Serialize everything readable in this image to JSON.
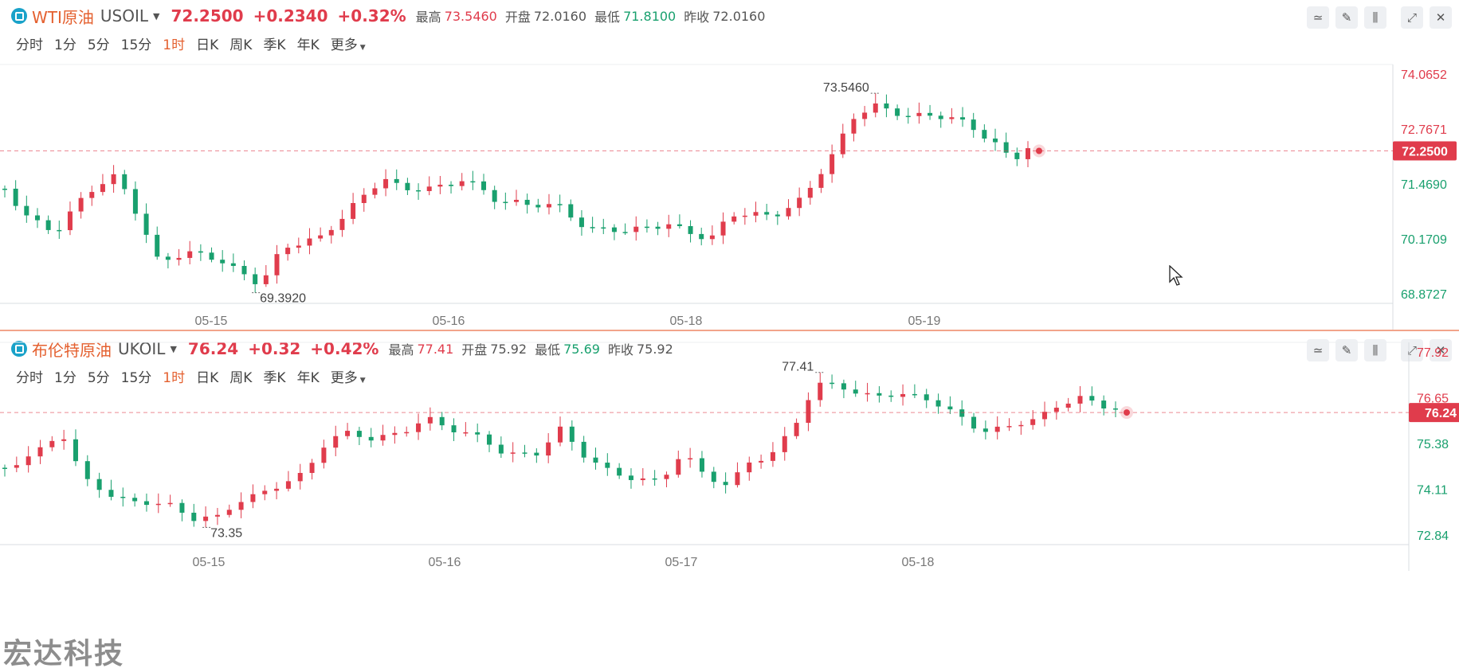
{
  "colors": {
    "up": "#e03c4c",
    "down": "#19a06e",
    "accent": "#e4602f",
    "axis": "#888"
  },
  "periods": [
    "分时",
    "1分",
    "5分",
    "15分",
    "1时",
    "日K",
    "周K",
    "季K",
    "年K",
    "更多"
  ],
  "active_period": "1时",
  "toolbar_icons": [
    "indicator-icon",
    "pencil-icon",
    "candle-settings-icon",
    "expand-icon",
    "close-icon"
  ],
  "watermark": "宏达科技",
  "panels": [
    {
      "name": "WTI原油",
      "code": "USOIL",
      "price": "72.2500",
      "change": "+0.2340",
      "change_pct": "+0.32%",
      "stats": [
        {
          "label": "最高",
          "value": "73.5460",
          "tone": "red"
        },
        {
          "label": "开盘",
          "value": "72.0160",
          "tone": "gray"
        },
        {
          "label": "最低",
          "value": "71.8100",
          "tone": "green"
        },
        {
          "label": "昨收",
          "value": "72.0160",
          "tone": "gray"
        }
      ],
      "chart": {
        "y_ticks": [
          "74.0652",
          "72.7671",
          "71.4690",
          "70.1709",
          "68.8727"
        ],
        "y_min": 68.8727,
        "y_max": 74.0652,
        "x_ticks": [
          "05-15",
          "05-16",
          "05-18",
          "05-19"
        ],
        "current": 72.25,
        "current_label": "72.2500",
        "high_label": "73.5460",
        "low_label": "69.3920"
      }
    },
    {
      "name": "布伦特原油",
      "code": "UKOIL",
      "price": "76.24",
      "change": "+0.32",
      "change_pct": "+0.42%",
      "stats": [
        {
          "label": "最高",
          "value": "77.41",
          "tone": "red"
        },
        {
          "label": "开盘",
          "value": "75.92",
          "tone": "gray"
        },
        {
          "label": "最低",
          "value": "75.69",
          "tone": "green"
        },
        {
          "label": "昨收",
          "value": "75.92",
          "tone": "gray"
        }
      ],
      "chart": {
        "y_ticks": [
          "77.92",
          "76.65",
          "75.38",
          "74.11",
          "72.84"
        ],
        "y_min": 72.84,
        "y_max": 77.92,
        "x_ticks": [
          "05-15",
          "05-16",
          "05-17",
          "05-18"
        ],
        "current": 76.24,
        "current_label": "76.24",
        "high_label": "77.41",
        "low_label": "73.35"
      }
    }
  ]
}
